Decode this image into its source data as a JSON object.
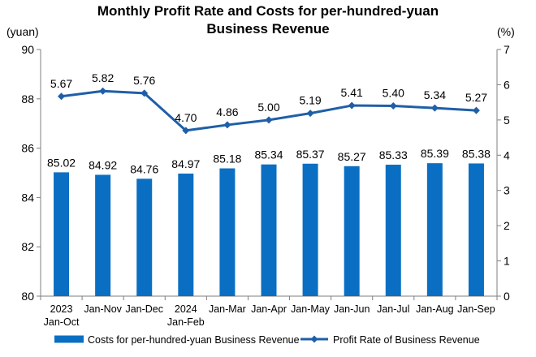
{
  "chart_data": {
    "type": "bar",
    "title_line1": "Monthly Profit Rate and Costs for per-hundred-yuan",
    "title_line2": "Business Revenue",
    "left_axis": {
      "unit": "(yuan)",
      "ylim": [
        80,
        90
      ],
      "ticks": [
        "80",
        "82",
        "84",
        "86",
        "88",
        "90"
      ]
    },
    "right_axis": {
      "unit": "(%)",
      "ylim": [
        0,
        7
      ],
      "ticks": [
        "0",
        "1",
        "2",
        "3",
        "4",
        "5",
        "6",
        "7"
      ]
    },
    "categories": [
      [
        "2023",
        "Jan-Oct"
      ],
      [
        "Jan-Nov"
      ],
      [
        "Jan-Dec"
      ],
      [
        "2024",
        "Jan-Feb"
      ],
      [
        "Jan-Mar"
      ],
      [
        "Jan-Apr"
      ],
      [
        "Jan-May"
      ],
      [
        "Jan-Jun"
      ],
      [
        "Jan-Jul"
      ],
      [
        "Jan-Aug"
      ],
      [
        "Jan-Sep"
      ]
    ],
    "series": [
      {
        "name": "Costs for per-hundred-yuan Business Revenue",
        "kind": "bar",
        "axis": "left",
        "values": [
          85.02,
          84.92,
          84.76,
          84.97,
          85.18,
          85.34,
          85.37,
          85.27,
          85.33,
          85.39,
          85.38
        ],
        "labels": [
          "85.02",
          "84.92",
          "84.76",
          "84.97",
          "85.18",
          "85.34",
          "85.37",
          "85.27",
          "85.33",
          "85.39",
          "85.38"
        ]
      },
      {
        "name": "Profit Rate of Business Revenue",
        "kind": "line",
        "axis": "right",
        "values": [
          5.67,
          5.82,
          5.76,
          4.7,
          4.86,
          5.0,
          5.19,
          5.41,
          5.4,
          5.34,
          5.27
        ],
        "labels": [
          "5.67",
          "5.82",
          "5.76",
          "4.70",
          "4.86",
          "5.00",
          "5.19",
          "5.41",
          "5.40",
          "5.34",
          "5.27"
        ]
      }
    ],
    "grid": false,
    "legend": "bottom",
    "colors": {
      "bar": "#0a6fc2",
      "line": "#1f5fa8",
      "axis": "#7f7f7f"
    }
  }
}
